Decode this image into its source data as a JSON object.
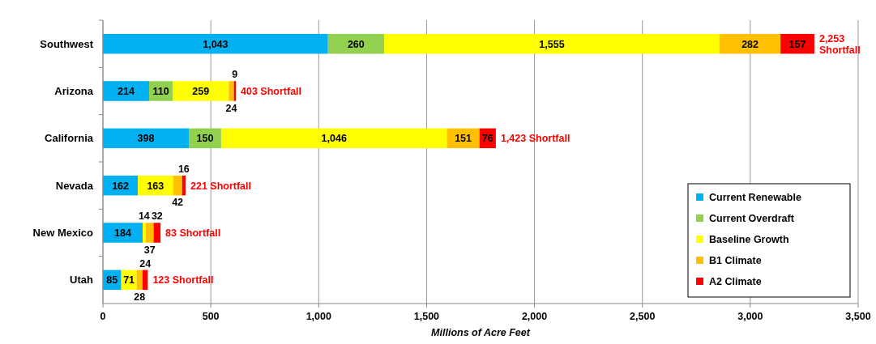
{
  "chart_data": {
    "type": "bar",
    "orientation": "horizontal",
    "stacked": true,
    "xlabel": "Millions of Acre Feet",
    "categories": [
      "Southwest",
      "Arizona",
      "California",
      "Nevada",
      "New Mexico",
      "Utah"
    ],
    "series": [
      {
        "name": "Current Renewable",
        "color": "#00b0f0",
        "values": [
          1043,
          214,
          398,
          162,
          184,
          85
        ],
        "value_labels": [
          "1,043",
          "214",
          "398",
          "162",
          "184",
          "85"
        ]
      },
      {
        "name": "Current Overdraft",
        "color": "#92d050",
        "values": [
          260,
          110,
          150,
          null,
          null,
          null
        ],
        "value_labels": [
          "260",
          "110",
          "150",
          null,
          null,
          null
        ]
      },
      {
        "name": "Baseline Growth",
        "color": "#ffff00",
        "values": [
          1555,
          259,
          1046,
          163,
          14,
          71
        ],
        "value_labels": [
          "1,555",
          "259",
          "1,046",
          "163",
          "14",
          "71"
        ]
      },
      {
        "name": "B1 Climate",
        "color": "#ffc000",
        "values": [
          282,
          24,
          151,
          42,
          37,
          28
        ],
        "value_labels": [
          "282",
          "24",
          "151",
          "42",
          "37",
          "28"
        ]
      },
      {
        "name": "A2 Climate",
        "color": "#ff0000",
        "values": [
          157,
          9,
          76,
          16,
          32,
          24
        ],
        "value_labels": [
          "157",
          "9",
          "76",
          "16",
          "32",
          "24"
        ]
      }
    ],
    "annotations": [
      {
        "text": "2,253 Shortfall",
        "x": 3297,
        "y": "Southwest"
      },
      {
        "text": "403 Shortfall",
        "x": 616,
        "y": "Arizona"
      },
      {
        "text": "1,423 Shortfall",
        "x": 1821,
        "y": "California"
      },
      {
        "text": "221 Shortfall",
        "x": 383,
        "y": "Nevada"
      },
      {
        "text": "83 Shortfall",
        "x": 267,
        "y": "New Mexico"
      },
      {
        "text": "123 Shortfall",
        "x": 208,
        "y": "Utah"
      }
    ],
    "xlim": [
      0,
      3500
    ],
    "xticks": [
      0,
      500,
      {
        "value": 1000,
        "label": "1,000"
      },
      {
        "value": 1500,
        "label": "1,500"
      },
      {
        "value": 2000,
        "label": "2,000"
      },
      {
        "value": 2500,
        "label": "2,500"
      },
      {
        "value": 3000,
        "label": "3,000"
      },
      {
        "value": 3500,
        "label": "3,500"
      }
    ],
    "grid": "x",
    "legend": "bottom right"
  }
}
